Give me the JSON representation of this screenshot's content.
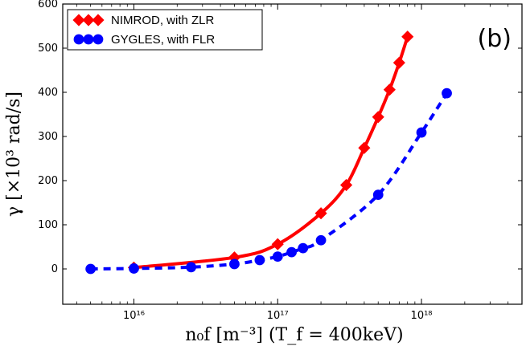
{
  "chart_data": {
    "type": "line",
    "panel_label": "(b)",
    "xscale": "log",
    "xlim": [
      3200000000000000.0,
      5e+18
    ],
    "ylim": [
      -80,
      600
    ],
    "y_ticks": [
      0,
      100,
      200,
      300,
      400,
      500,
      600
    ],
    "y_tick_labels": [
      "0",
      "100",
      "200",
      "300",
      "400",
      "500",
      "600"
    ],
    "x_ticks": [
      1e+16,
      1e+17,
      1e+18
    ],
    "x_tick_labels": [
      "10¹⁶",
      "10¹⁷",
      "10¹⁸"
    ],
    "xlabel": "n₀f [m⁻³] (T_f = 400keV)",
    "ylabel": "γ [×10³ rad/s]",
    "legend_position": "top-left",
    "series": [
      {
        "name": "NIMROD, with ZLR",
        "color": "#ff0000",
        "marker": "diamond",
        "line_style": "solid",
        "x": [
          1e+16,
          5e+16,
          1e+17,
          2e+17,
          3e+17,
          4e+17,
          5e+17,
          6e+17,
          7e+17,
          8e+17
        ],
        "y": [
          3,
          26,
          56,
          126,
          190,
          274,
          344,
          406,
          467,
          526
        ]
      },
      {
        "name": "GYGLES, with FLR",
        "color": "#0000ff",
        "marker": "circle",
        "line_style": "dashed",
        "x": [
          5000000000000000.0,
          1e+16,
          2.5e+16,
          5e+16,
          7.5e+16,
          1e+17,
          1.25e+17,
          1.5e+17,
          2e+17,
          5e+17,
          1e+18,
          1.5e+18
        ],
        "y": [
          0,
          1,
          4,
          11,
          20,
          28,
          38,
          47,
          65,
          168,
          309,
          398
        ]
      }
    ]
  }
}
